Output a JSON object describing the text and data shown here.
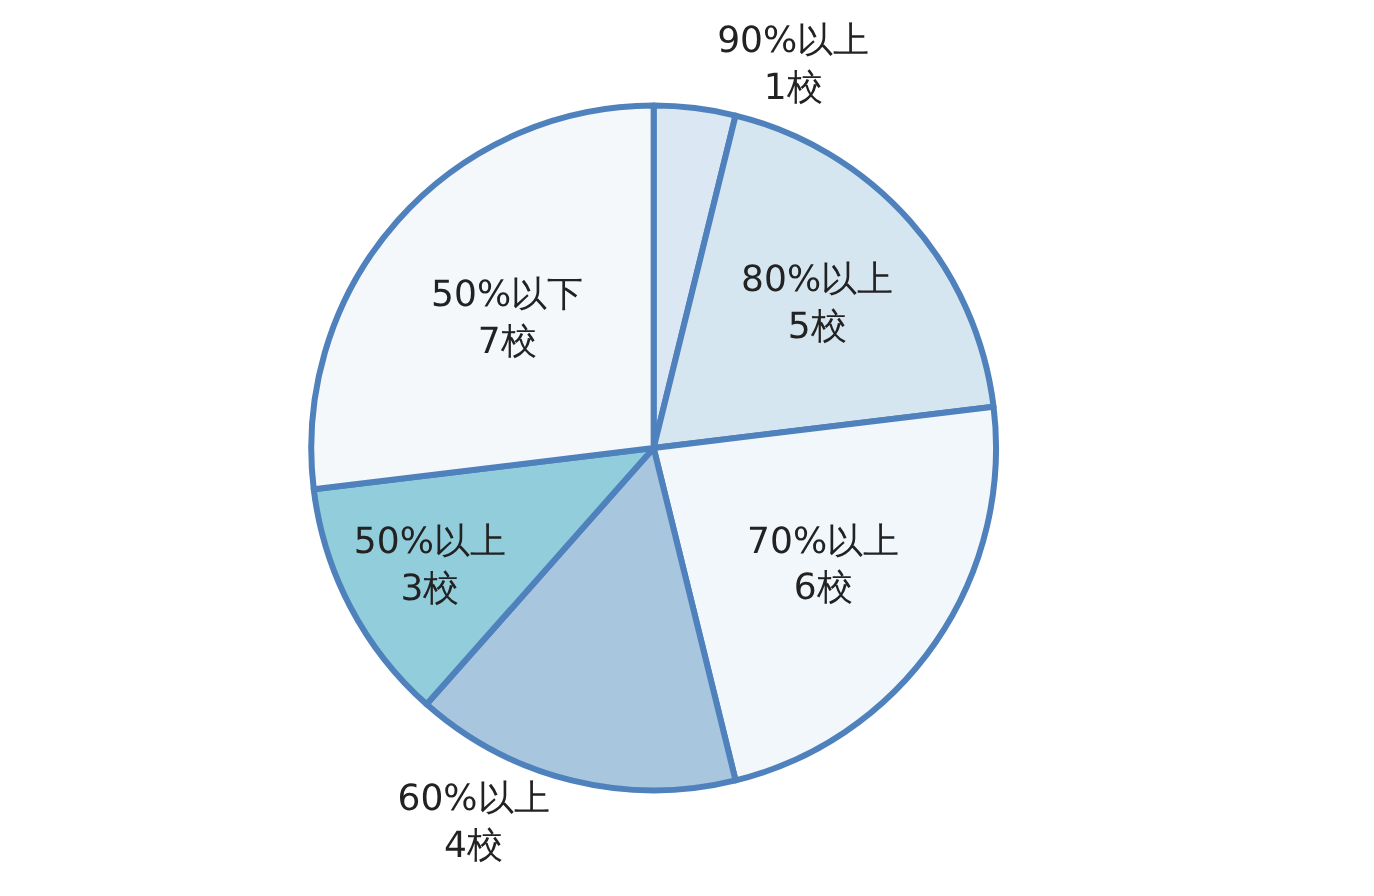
{
  "chart_data": {
    "type": "pie",
    "categories": [
      "90%以上",
      "80%以上",
      "70%以上",
      "60%以上",
      "50%以上",
      "50%以下"
    ],
    "values": [
      1,
      5,
      6,
      4,
      3,
      7
    ],
    "value_labels": [
      "1校",
      "5校",
      "6校",
      "4校",
      "3校",
      "7校"
    ],
    "colors": [
      "#dbe7f3",
      "#d6e6f0",
      "#f2f7fb",
      "#a9c6df",
      "#92cddc",
      "#f4f8fb"
    ],
    "legend": false
  }
}
